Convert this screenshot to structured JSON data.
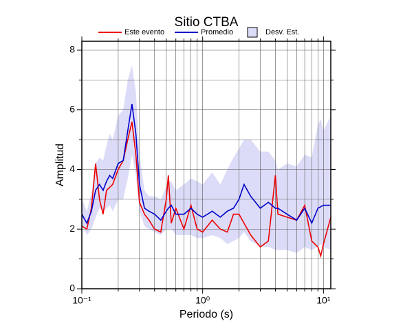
{
  "chart_data": {
    "type": "line",
    "title": "Sitio CTBA",
    "xlabel": "Periodo (s)",
    "ylabel": "Amplitud",
    "xscale": "log",
    "grid": true,
    "legend": "top",
    "x": [
      0.1,
      0.11,
      0.12,
      0.13,
      0.14,
      0.15,
      0.16,
      0.17,
      0.18,
      0.2,
      0.22,
      0.24,
      0.26,
      0.28,
      0.3,
      0.33,
      0.36,
      0.4,
      0.45,
      0.5,
      0.52,
      0.55,
      0.6,
      0.7,
      0.8,
      0.9,
      1,
      1.2,
      1.4,
      1.6,
      1.8,
      2,
      2.2,
      2.5,
      3,
      3.5,
      4,
      4.2,
      5,
      6,
      7,
      8,
      9,
      9.5,
      10,
      11.5
    ],
    "series": [
      {
        "name": "Este evento",
        "color": "#ee0000",
        "values": [
          2.1,
          2.0,
          2.7,
          4.2,
          3.0,
          2.5,
          3.3,
          3.4,
          3.5,
          4.0,
          4.3,
          5.0,
          5.6,
          4.5,
          2.9,
          2.5,
          2.3,
          2.0,
          1.9,
          3.0,
          3.8,
          2.2,
          2.7,
          2.0,
          2.8,
          2.0,
          1.9,
          2.3,
          2.0,
          1.9,
          2.5,
          2.5,
          2.2,
          1.8,
          1.4,
          1.6,
          3.8,
          2.5,
          2.4,
          2.3,
          2.8,
          1.6,
          1.4,
          1.1,
          1.5,
          2.4
        ]
      },
      {
        "name": "Promedio",
        "color": "#0000cc",
        "values": [
          2.5,
          2.2,
          2.6,
          3.3,
          3.5,
          3.3,
          3.6,
          3.8,
          3.7,
          4.2,
          4.3,
          5.3,
          6.2,
          5.2,
          3.5,
          2.7,
          2.6,
          2.5,
          2.3,
          2.6,
          2.7,
          2.8,
          2.5,
          2.5,
          2.7,
          2.5,
          2.4,
          2.6,
          2.4,
          2.6,
          2.7,
          3.0,
          3.5,
          3.1,
          2.7,
          2.9,
          2.7,
          2.7,
          2.5,
          2.3,
          2.7,
          2.2,
          2.7,
          2.75,
          2.8,
          2.8
        ]
      },
      {
        "name": "Desv. Est.",
        "color": "#dcdcf8",
        "upper": [
          3.0,
          2.6,
          3.2,
          4.2,
          4.4,
          4.3,
          4.8,
          5.2,
          5.0,
          5.8,
          6.0,
          7.0,
          7.5,
          6.6,
          4.5,
          3.3,
          3.1,
          3.1,
          3.0,
          3.4,
          3.6,
          3.6,
          3.3,
          3.5,
          3.7,
          3.6,
          3.5,
          3.9,
          3.5,
          4.0,
          4.4,
          4.7,
          5.0,
          5.0,
          4.6,
          4.6,
          4.3,
          4.0,
          4.2,
          4.1,
          4.5,
          4.4,
          5.5,
          5.7,
          5.3,
          5.8
        ],
        "lower": [
          2.2,
          1.8,
          2.0,
          2.4,
          2.7,
          2.6,
          2.7,
          2.8,
          2.6,
          3.0,
          3.0,
          3.7,
          4.5,
          3.8,
          2.6,
          2.1,
          2.0,
          1.9,
          1.8,
          2.0,
          2.0,
          2.0,
          1.8,
          1.8,
          1.8,
          1.7,
          1.7,
          1.8,
          1.7,
          1.5,
          1.6,
          1.7,
          1.9,
          1.6,
          1.4,
          1.4,
          1.3,
          1.3,
          1.3,
          1.2,
          1.4,
          1.3,
          1.4,
          1.5,
          1.4,
          1.3
        ]
      }
    ],
    "xlim": [
      0.1,
      11.5
    ],
    "ylim": [
      0,
      8.3
    ],
    "xticks": [
      {
        "value": 0.1,
        "label": "10⁻¹"
      },
      {
        "value": 1,
        "label": "10⁰"
      },
      {
        "value": 10,
        "label": "10¹"
      }
    ],
    "xminorticks": [
      0.2,
      0.3,
      0.4,
      0.5,
      0.6,
      0.7,
      0.8,
      0.9,
      2,
      3,
      4,
      5,
      6,
      7,
      8,
      9
    ],
    "yticks": [
      0,
      2,
      4,
      6,
      8
    ],
    "yminorticks": [
      1,
      3,
      5,
      7
    ]
  }
}
